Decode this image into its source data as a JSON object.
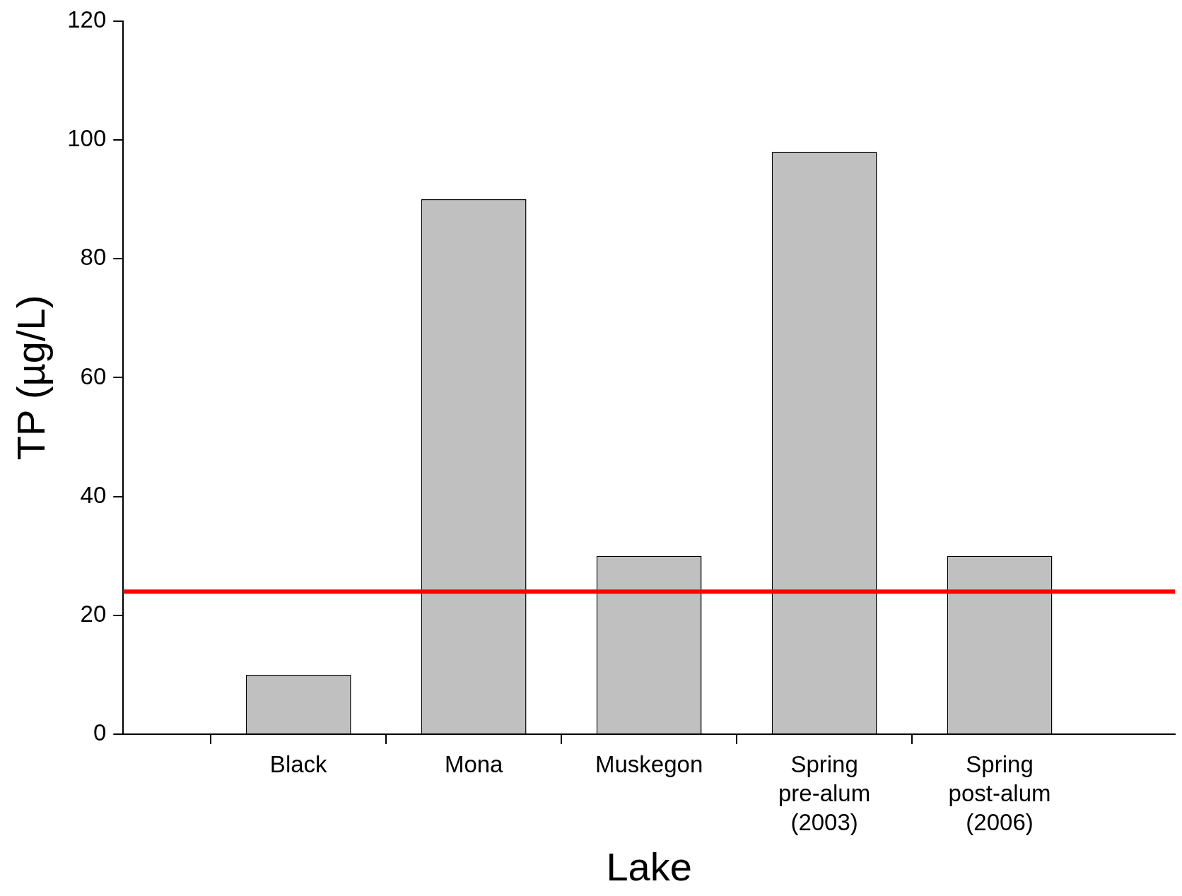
{
  "chart_data": {
    "type": "bar",
    "xlabel": "Lake",
    "ylabel": "TP (µg/L)",
    "categories": [
      "Black",
      "Mona",
      "Muskegon",
      "Spring pre-alum (2003)",
      "Spring post-alum (2006)"
    ],
    "values": [
      10,
      90,
      30,
      98,
      30
    ],
    "color": "#c0c0c0",
    "ylim": [
      0,
      120
    ],
    "yticks": [
      0,
      20,
      40,
      60,
      80,
      100,
      120
    ],
    "grid": false,
    "legend": false,
    "ref_lines": [
      {
        "axis": "y",
        "value": 24,
        "color": "#ff0000"
      }
    ]
  }
}
